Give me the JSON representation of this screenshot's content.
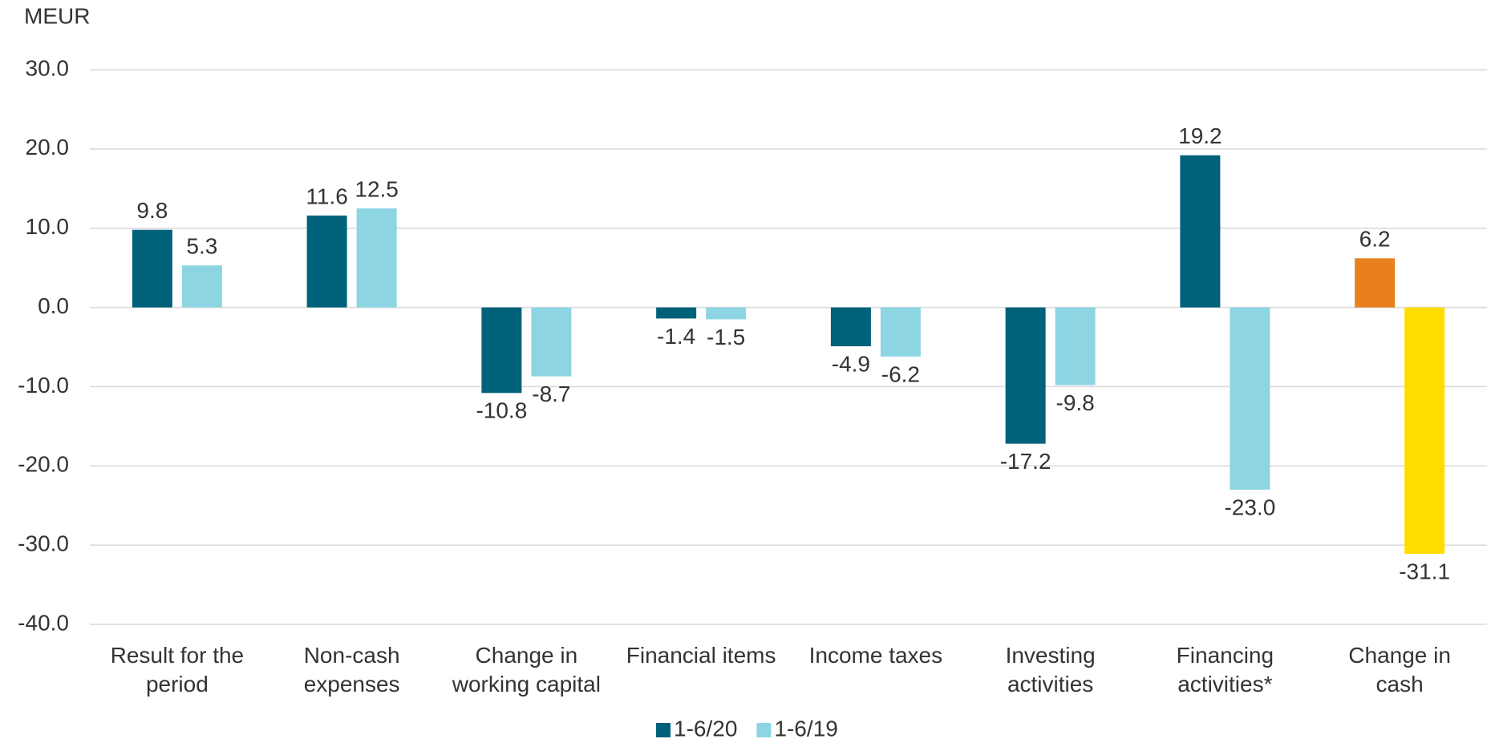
{
  "chart_data": {
    "type": "bar",
    "y_label": "MEUR",
    "categories": [
      "Result for the\nperiod",
      "Non-cash\nexpenses",
      "Change in\nworking capital",
      "Financial items",
      "Income taxes",
      "Investing\nactivities",
      "Financing\nactivities*",
      "Change in\ncash"
    ],
    "series": [
      {
        "name": "1-6/20",
        "color": "#00627a",
        "colors": [
          "#00627a",
          "#00627a",
          "#00627a",
          "#00627a",
          "#00627a",
          "#00627a",
          "#00627a",
          "#e8801e"
        ],
        "values": [
          9.8,
          11.6,
          -10.8,
          -1.4,
          -4.9,
          -17.2,
          19.2,
          6.2
        ]
      },
      {
        "name": "1-6/19",
        "color": "#8dd5e3",
        "colors": [
          "#8dd5e3",
          "#8dd5e3",
          "#8dd5e3",
          "#8dd5e3",
          "#8dd5e3",
          "#8dd5e3",
          "#8dd5e3",
          "#ffdd00"
        ],
        "values": [
          5.3,
          12.5,
          -8.7,
          -1.5,
          -6.2,
          -9.8,
          -23,
          -31.1
        ],
        "value_labels": [
          "5.3",
          "12.5",
          "-8.7",
          "-1.5",
          "-6.2",
          "-9.8",
          "-23.0",
          "-31.1"
        ]
      }
    ],
    "ylim": [
      -40,
      30
    ],
    "yticks": [
      {
        "value": -40,
        "label": "-40.0"
      },
      {
        "value": -30,
        "label": "-30.0"
      },
      {
        "value": -20,
        "label": "-20.0"
      },
      {
        "value": -10,
        "label": "-10.0"
      },
      {
        "value": 0,
        "label": "0.0"
      },
      {
        "value": 10,
        "label": "10.0"
      },
      {
        "value": 20,
        "label": "20.0"
      },
      {
        "value": 30,
        "label": "30.0"
      }
    ],
    "grid": true,
    "legend": "bottom"
  }
}
